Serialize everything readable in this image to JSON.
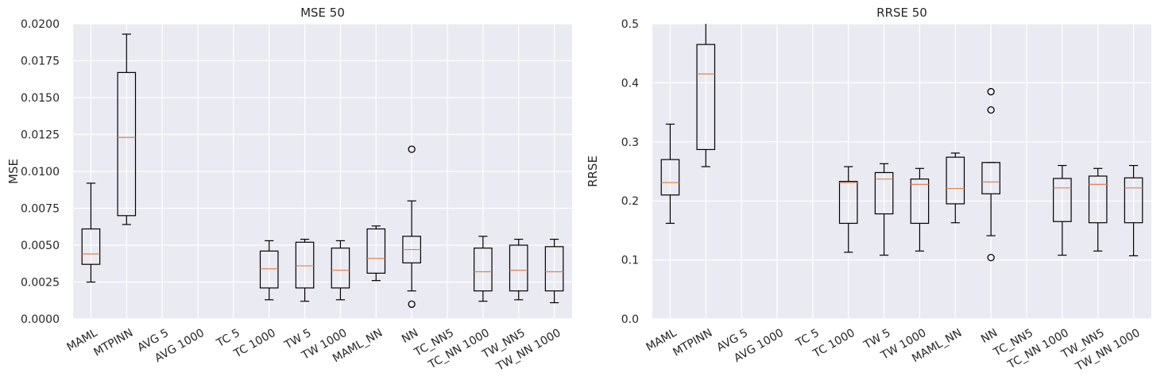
{
  "chart_data": [
    {
      "type": "box",
      "title": "MSE 50",
      "xlabel": "",
      "ylabel": "MSE",
      "ylim": [
        0,
        0.02
      ],
      "yticks": [
        "0.0000",
        "0.0025",
        "0.0050",
        "0.0075",
        "0.0100",
        "0.0125",
        "0.0150",
        "0.0175",
        "0.0200"
      ],
      "grid": true,
      "categories": [
        "MAML",
        "MTPINN",
        "AVG 5",
        "AVG 1000",
        "TC 5",
        "TC 1000",
        "TW 5",
        "TW 1000",
        "MAML_NN",
        "NN",
        "TC_NN5",
        "TC_NN 1000",
        "TW_NN5",
        "TW_NN 1000"
      ],
      "boxes": [
        {
          "whislo": 0.0025,
          "q1": 0.0037,
          "med": 0.0044,
          "q3": 0.0061,
          "whishi": 0.0092,
          "fliers": []
        },
        {
          "whislo": 0.0064,
          "q1": 0.007,
          "med": 0.0123,
          "q3": 0.0167,
          "whishi": 0.0193,
          "fliers": []
        },
        null,
        null,
        null,
        {
          "whislo": 0.0013,
          "q1": 0.0021,
          "med": 0.0034,
          "q3": 0.0046,
          "whishi": 0.0053,
          "fliers": []
        },
        {
          "whislo": 0.0012,
          "q1": 0.0021,
          "med": 0.0036,
          "q3": 0.0052,
          "whishi": 0.0054,
          "fliers": []
        },
        {
          "whislo": 0.0013,
          "q1": 0.0021,
          "med": 0.0033,
          "q3": 0.0048,
          "whishi": 0.0053,
          "fliers": []
        },
        {
          "whislo": 0.0026,
          "q1": 0.0031,
          "med": 0.0041,
          "q3": 0.0061,
          "whishi": 0.0063,
          "fliers": []
        },
        {
          "whislo": 0.0019,
          "q1": 0.0038,
          "med": 0.0047,
          "q3": 0.0056,
          "whishi": 0.008,
          "fliers": [
            0.0115,
            0.001
          ]
        },
        null,
        {
          "whislo": 0.0012,
          "q1": 0.0019,
          "med": 0.0032,
          "q3": 0.0048,
          "whishi": 0.0056,
          "fliers": []
        },
        {
          "whislo": 0.0013,
          "q1": 0.0019,
          "med": 0.0033,
          "q3": 0.005,
          "whishi": 0.0054,
          "fliers": []
        },
        {
          "whislo": 0.0011,
          "q1": 0.0019,
          "med": 0.0032,
          "q3": 0.0049,
          "whishi": 0.0054,
          "fliers": []
        }
      ]
    },
    {
      "type": "box",
      "title": "RRSE 50",
      "xlabel": "",
      "ylabel": "RRSE",
      "ylim": [
        0,
        0.5
      ],
      "yticks": [
        "0.0",
        "0.1",
        "0.2",
        "0.3",
        "0.4",
        "0.5"
      ],
      "grid": true,
      "categories": [
        "MAML",
        "MTPINN",
        "AVG 5",
        "AVG 1000",
        "TC 5",
        "TC 1000",
        "TW 5",
        "TW 1000",
        "MAML_NN",
        "NN",
        "TC_NN5",
        "TC_NN 1000",
        "TW_NN5",
        "TW_NN 1000"
      ],
      "boxes": [
        {
          "whislo": 0.162,
          "q1": 0.21,
          "med": 0.231,
          "q3": 0.27,
          "whishi": 0.33,
          "fliers": []
        },
        {
          "whislo": 0.258,
          "q1": 0.287,
          "med": 0.415,
          "q3": 0.465,
          "whishi": 0.52,
          "fliers": []
        },
        null,
        null,
        null,
        {
          "whislo": 0.113,
          "q1": 0.162,
          "med": 0.231,
          "q3": 0.233,
          "whishi": 0.258,
          "fliers": []
        },
        {
          "whislo": 0.108,
          "q1": 0.178,
          "med": 0.237,
          "q3": 0.248,
          "whishi": 0.263,
          "fliers": []
        },
        {
          "whislo": 0.115,
          "q1": 0.162,
          "med": 0.228,
          "q3": 0.237,
          "whishi": 0.255,
          "fliers": []
        },
        {
          "whislo": 0.163,
          "q1": 0.195,
          "med": 0.221,
          "q3": 0.274,
          "whishi": 0.281,
          "fliers": []
        },
        {
          "whislo": 0.141,
          "q1": 0.212,
          "med": 0.232,
          "q3": 0.265,
          "whishi": 0.265,
          "fliers": [
            0.385,
            0.354,
            0.104
          ]
        },
        null,
        {
          "whislo": 0.108,
          "q1": 0.165,
          "med": 0.222,
          "q3": 0.238,
          "whishi": 0.26,
          "fliers": []
        },
        {
          "whislo": 0.115,
          "q1": 0.163,
          "med": 0.228,
          "q3": 0.242,
          "whishi": 0.255,
          "fliers": []
        },
        {
          "whislo": 0.107,
          "q1": 0.163,
          "med": 0.222,
          "q3": 0.239,
          "whishi": 0.26,
          "fliers": []
        }
      ]
    }
  ],
  "colors": {
    "axes_background": "#eaeaf2",
    "grid": "#ffffff",
    "box_line": "#000000",
    "median_line": "#dd8452",
    "text": "#262626"
  }
}
